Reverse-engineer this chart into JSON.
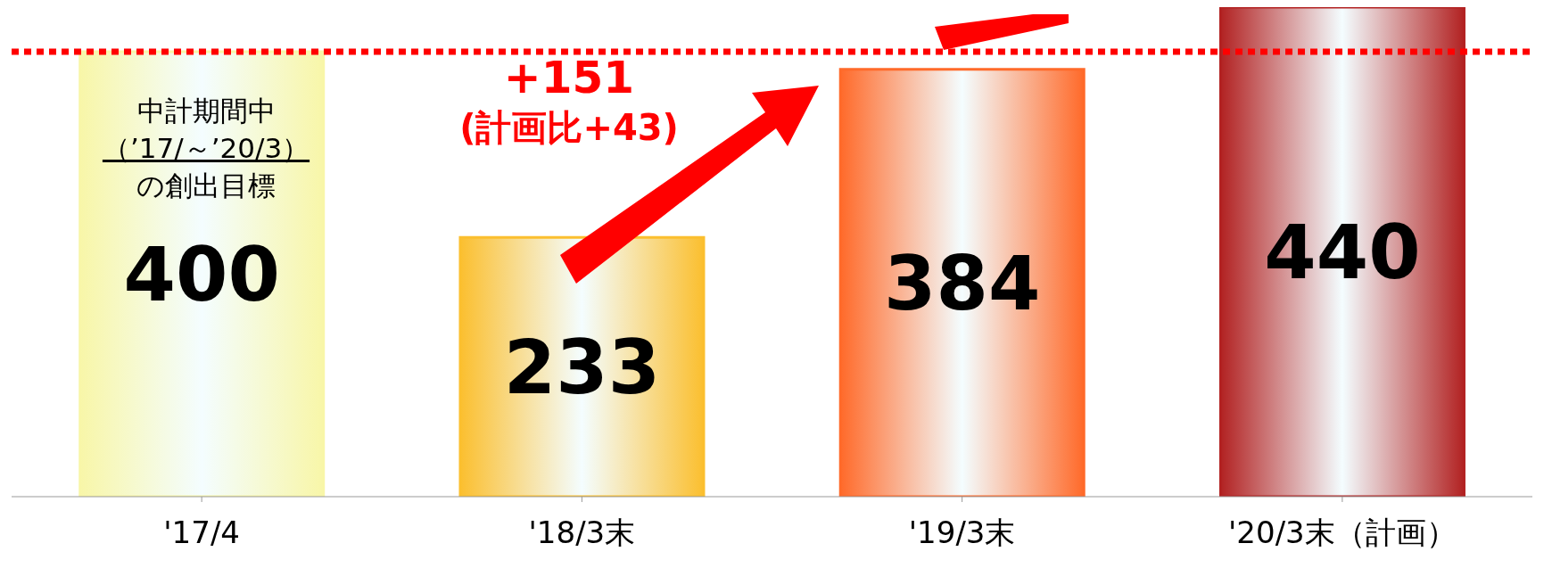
{
  "chart_data": {
    "type": "bar",
    "categories": [
      "'17/4",
      "'18/3末",
      "'19/3末",
      "'20/3末（計画）"
    ],
    "values": [
      400,
      233,
      384,
      440
    ],
    "colors": [
      "#f8f6a8",
      "#fbbf2f",
      "#ff6a2a",
      "#b22222"
    ],
    "data_labels": true,
    "ylim": [
      0,
      440
    ],
    "ref_lines": [
      {
        "axis": "y",
        "value": 400,
        "color": "#ff0000",
        "line_style": "dotted"
      }
    ],
    "annotations": [
      "中計期間中",
      "（’17/～’20/3）",
      "の創出目標",
      "+151",
      "(計画比+43)"
    ]
  }
}
